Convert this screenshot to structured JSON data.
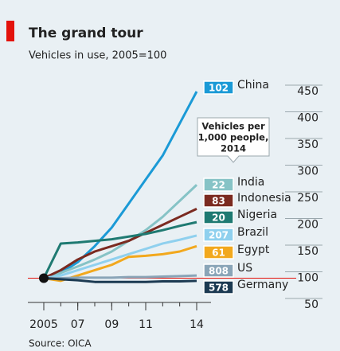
{
  "chart_data": {
    "type": "line",
    "title": "The grand tour",
    "subtitle": "Vehicles in use, 2005=100",
    "source": "Source: OICA",
    "annotation_lines": [
      "Vehicles per",
      "1,000 people,",
      "2014"
    ],
    "x": [
      2005,
      2006,
      2007,
      2008,
      2009,
      2010,
      2011,
      2012,
      2013,
      2014
    ],
    "xlim": [
      2004,
      2016
    ],
    "xticks": [
      {
        "value": 2005,
        "label": "2005"
      },
      {
        "value": 2007,
        "label": "07"
      },
      {
        "value": 2009,
        "label": "09"
      },
      {
        "value": 2011,
        "label": "11"
      },
      {
        "value": 2014,
        "label": "14"
      }
    ],
    "ylim": [
      50,
      470
    ],
    "yticks": [
      50,
      100,
      150,
      200,
      250,
      300,
      350,
      400,
      450
    ],
    "baseline": 100,
    "series": [
      {
        "name": "China",
        "per_1000": 102,
        "color": "#1b9ad6",
        "values": [
          100,
          110,
          130,
          160,
          195,
          240,
          285,
          330,
          390,
          450
        ]
      },
      {
        "name": "India",
        "per_1000": 22,
        "color": "#86c3c6",
        "values": [
          100,
          110,
          122,
          135,
          150,
          170,
          190,
          215,
          245,
          275
        ]
      },
      {
        "name": "Indonesia",
        "per_1000": 83,
        "color": "#7b2a20",
        "values": [
          100,
          115,
          135,
          150,
          160,
          170,
          185,
          200,
          215,
          230
        ]
      },
      {
        "name": "Nigeria",
        "per_1000": 20,
        "color": "#1f7a72",
        "values": [
          100,
          165,
          167,
          170,
          173,
          178,
          183,
          190,
          198,
          205
        ]
      },
      {
        "name": "Brazil",
        "per_1000": 207,
        "color": "#8fd0ee",
        "values": [
          100,
          105,
          115,
          125,
          135,
          145,
          155,
          165,
          172,
          180
        ]
      },
      {
        "name": "Egypt",
        "per_1000": 61,
        "color": "#f2a81d",
        "values": [
          100,
          95,
          105,
          115,
          125,
          140,
          142,
          145,
          150,
          160
        ]
      },
      {
        "name": "US",
        "per_1000": 808,
        "color": "#8aa5b8",
        "values": [
          100,
          100,
          101,
          101,
          101,
          102,
          102,
          103,
          104,
          105
        ]
      },
      {
        "name": "Germany",
        "per_1000": 578,
        "color": "#1c3a52",
        "values": [
          100,
          98,
          96,
          93,
          93,
          93,
          93,
          94,
          94,
          95
        ]
      }
    ]
  }
}
